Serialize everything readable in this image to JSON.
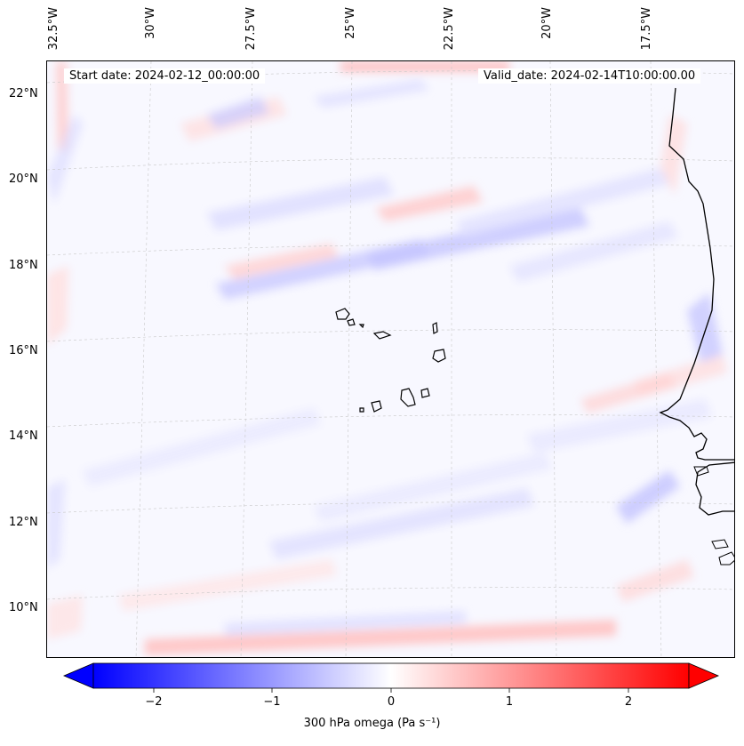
{
  "header": {
    "start_date": "Start date: 2024-02-12_00:00:00",
    "valid_date": "Valid_date: 2024-02-14T10:00:00.00"
  },
  "map": {
    "lon_labels": [
      "32.5°W",
      "30°W",
      "27.5°W",
      "25°W",
      "22.5°W",
      "20°W",
      "17.5°W"
    ],
    "lat_labels": [
      "22°N",
      "20°N",
      "18°N",
      "16°N",
      "14°N",
      "12°N",
      "10°N"
    ],
    "variable": "300 hPa omega"
  },
  "colorbar": {
    "label": "300 hPa omega (Pa s⁻¹)",
    "ticks": [
      "−2",
      "−1",
      "0",
      "1",
      "2"
    ],
    "vmin": -2.5,
    "vmax": 2.5,
    "colors": {
      "negative": "#0000ff",
      "neutral": "#ffffff",
      "positive": "#ff0000"
    }
  }
}
